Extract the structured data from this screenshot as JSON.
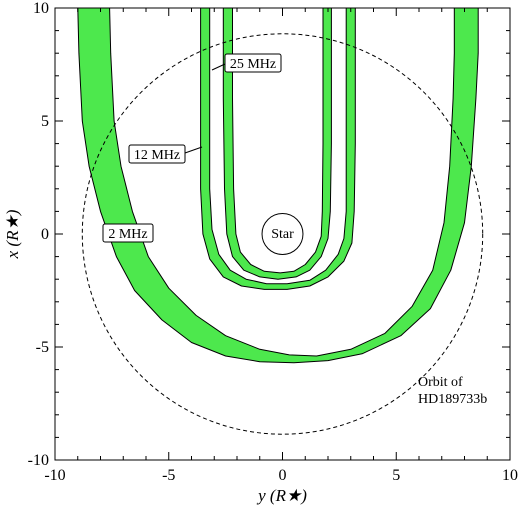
{
  "chart_data": {
    "type": "diagram",
    "xlabel": "y (R★)",
    "ylabel": "x (R★)",
    "xlim": [
      -10,
      10
    ],
    "ylim": [
      -10,
      10
    ],
    "x_ticks": [
      "-10",
      "-5",
      "0",
      "5",
      "10"
    ],
    "y_ticks": [
      "-10",
      "-5",
      "0",
      "5",
      "10"
    ],
    "star_label": "Star",
    "star_radius": 0.9,
    "orbit_radius": 8.8,
    "orbit_label_line1": "Orbit of",
    "orbit_label_line2": "HD189733b",
    "bands": [
      {
        "label": "2 MHz",
        "color": "#4de84d",
        "outer": [
          [
            -9.0,
            10
          ],
          [
            -8.95,
            8
          ],
          [
            -8.8,
            5
          ],
          [
            -8.5,
            3
          ],
          [
            -8.0,
            1
          ],
          [
            -7.3,
            -1
          ],
          [
            -6.5,
            -2.5
          ],
          [
            -5.3,
            -3.8
          ],
          [
            -4.0,
            -4.8
          ],
          [
            -2.5,
            -5.4
          ],
          [
            -1.0,
            -5.65
          ],
          [
            0.5,
            -5.7
          ],
          [
            2.0,
            -5.6
          ],
          [
            3.5,
            -5.3
          ],
          [
            5.2,
            -4.5
          ],
          [
            6.5,
            -3.3
          ],
          [
            7.4,
            -1.6
          ],
          [
            8.0,
            0.5
          ],
          [
            8.3,
            3
          ],
          [
            8.5,
            6
          ],
          [
            8.6,
            8
          ],
          [
            8.6,
            10
          ]
        ],
        "inner": [
          [
            -7.6,
            10
          ],
          [
            -7.55,
            8
          ],
          [
            -7.4,
            5
          ],
          [
            -7.1,
            3
          ],
          [
            -6.6,
            1
          ],
          [
            -5.9,
            -1
          ],
          [
            -5.0,
            -2.4
          ],
          [
            -3.8,
            -3.6
          ],
          [
            -2.5,
            -4.5
          ],
          [
            -1.0,
            -5.1
          ],
          [
            0.3,
            -5.35
          ],
          [
            1.5,
            -5.4
          ],
          [
            3.0,
            -5.1
          ],
          [
            4.5,
            -4.4
          ],
          [
            5.7,
            -3.2
          ],
          [
            6.6,
            -1.6
          ],
          [
            7.1,
            0.5
          ],
          [
            7.35,
            3
          ],
          [
            7.5,
            6
          ],
          [
            7.55,
            8
          ],
          [
            7.55,
            10
          ]
        ]
      },
      {
        "label": "12 MHz",
        "color": "#4de84d",
        "outer": [
          [
            -3.6,
            10
          ],
          [
            -3.6,
            6
          ],
          [
            -3.6,
            2
          ],
          [
            -3.5,
            0
          ],
          [
            -3.2,
            -1.1
          ],
          [
            -2.6,
            -1.9
          ],
          [
            -1.8,
            -2.3
          ],
          [
            -0.8,
            -2.45
          ],
          [
            0.2,
            -2.45
          ],
          [
            1.2,
            -2.3
          ],
          [
            2.0,
            -1.9
          ],
          [
            2.7,
            -1.2
          ],
          [
            3.05,
            -0.4
          ],
          [
            3.15,
            1
          ],
          [
            3.2,
            4
          ],
          [
            3.2,
            10
          ]
        ],
        "inner": [
          [
            -3.2,
            10
          ],
          [
            -3.2,
            6
          ],
          [
            -3.2,
            2
          ],
          [
            -3.1,
            0.2
          ],
          [
            -2.8,
            -0.9
          ],
          [
            -2.3,
            -1.6
          ],
          [
            -1.6,
            -2.0
          ],
          [
            -0.7,
            -2.2
          ],
          [
            0.2,
            -2.2
          ],
          [
            1.2,
            -2.05
          ],
          [
            1.9,
            -1.6
          ],
          [
            2.45,
            -0.9
          ],
          [
            2.7,
            -0.2
          ],
          [
            2.8,
            1
          ],
          [
            2.8,
            4
          ],
          [
            2.8,
            10
          ]
        ]
      },
      {
        "label": "25 MHz",
        "color": "#4de84d",
        "outer": [
          [
            -2.6,
            10
          ],
          [
            -2.6,
            6
          ],
          [
            -2.55,
            2
          ],
          [
            -2.45,
            0
          ],
          [
            -2.2,
            -1.0
          ],
          [
            -1.7,
            -1.6
          ],
          [
            -1.0,
            -1.9
          ],
          [
            -0.2,
            -2.0
          ],
          [
            0.6,
            -1.9
          ],
          [
            1.2,
            -1.6
          ],
          [
            1.7,
            -1.0
          ],
          [
            2.0,
            -0.2
          ],
          [
            2.1,
            1
          ],
          [
            2.15,
            4
          ],
          [
            2.15,
            10
          ]
        ],
        "inner": [
          [
            -2.2,
            10
          ],
          [
            -2.2,
            6
          ],
          [
            -2.15,
            2
          ],
          [
            -2.05,
            0
          ],
          [
            -1.85,
            -0.8
          ],
          [
            -1.4,
            -1.35
          ],
          [
            -0.8,
            -1.65
          ],
          [
            -0.1,
            -1.72
          ],
          [
            0.5,
            -1.65
          ],
          [
            1.0,
            -1.35
          ],
          [
            1.45,
            -0.8
          ],
          [
            1.7,
            -0.1
          ],
          [
            1.75,
            1
          ],
          [
            1.78,
            4
          ],
          [
            1.78,
            10
          ]
        ]
      }
    ]
  }
}
